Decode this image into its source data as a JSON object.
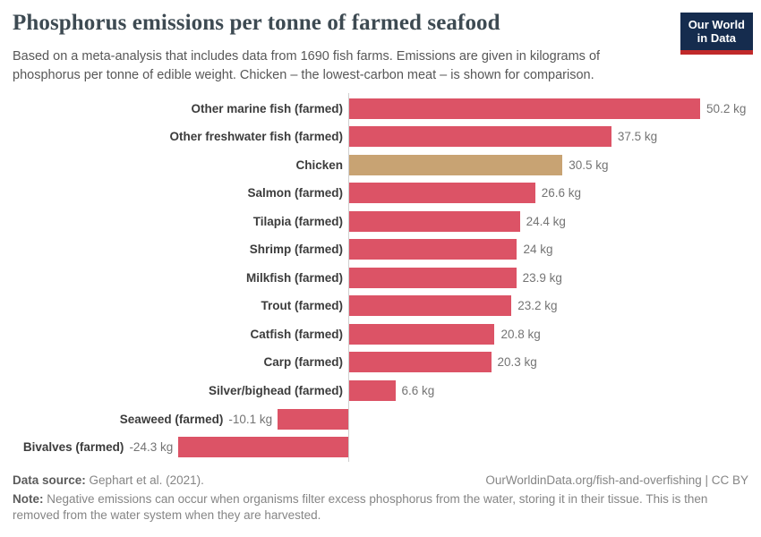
{
  "header": {
    "title": "Phosphorus emissions per tonne of farmed seafood",
    "subtitle": "Based on a meta-analysis that includes data from 1690 fish farms. Emissions are given in kilograms of phosphorus per tonne of edible weight. Chicken – the lowest-carbon meat – is shown for comparison.",
    "logo_line1": "Our World",
    "logo_line2": "in Data",
    "logo_bg": "#152c4e",
    "logo_accent": "#c0292a"
  },
  "chart_data": {
    "type": "bar",
    "orientation": "horizontal",
    "unit": "kg",
    "categories": [
      "Other marine fish (farmed)",
      "Other freshwater fish (farmed)",
      "Chicken",
      "Salmon (farmed)",
      "Tilapia (farmed)",
      "Shrimp (farmed)",
      "Milkfish (farmed)",
      "Trout (farmed)",
      "Catfish (farmed)",
      "Carp (farmed)",
      "Silver/bighead (farmed)",
      "Seaweed (farmed)",
      "Bivalves (farmed)"
    ],
    "values": [
      50.2,
      37.5,
      30.5,
      26.6,
      24.4,
      24,
      23.9,
      23.2,
      20.8,
      20.3,
      6.6,
      -10.1,
      -24.3
    ],
    "value_labels": [
      "50.2 kg",
      "37.5 kg",
      "30.5 kg",
      "26.6 kg",
      "24.4 kg",
      "24 kg",
      "23.9 kg",
      "23.2 kg",
      "20.8 kg",
      "20.3 kg",
      "6.6 kg",
      "-10.1 kg",
      "-24.3 kg"
    ],
    "highlight_index": 2,
    "bar_color": "#dc5366",
    "highlight_color": "#c8a373",
    "xlim": [
      -24.3,
      50.2
    ],
    "zero_line": true,
    "legend": "none"
  },
  "footer": {
    "datasource_label": "Data source:",
    "datasource_value": "Gephart et al. (2021).",
    "link": "OurWorldinData.org/fish-and-overfishing | CC BY",
    "note_label": "Note:",
    "note_text": "Negative emissions can occur when organisms filter excess phosphorus from the water, storing it in their tissue. This is then removed from the water system when they are harvested."
  }
}
